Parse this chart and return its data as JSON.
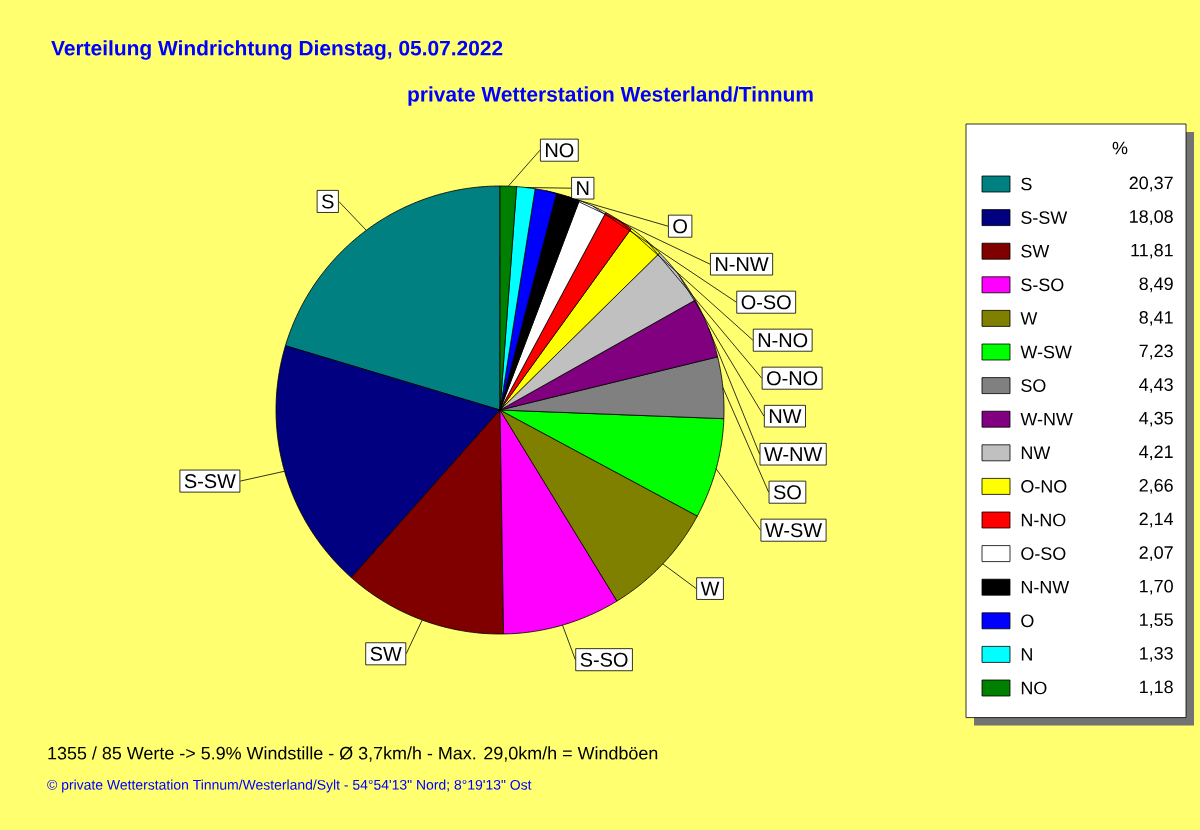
{
  "chart_data": {
    "type": "pie",
    "title": "Verteilung Windrichtung   Dienstag, 05.07.2022",
    "subtitle": "private Wetterstation Westerland/Tinnum",
    "legend_title": "%",
    "categories": [
      "S",
      "S-SW",
      "SW",
      "S-SO",
      "W",
      "W-SW",
      "SO",
      "W-NW",
      "NW",
      "O-NO",
      "N-NO",
      "O-SO",
      "N-NW",
      "O",
      "N",
      "NO"
    ],
    "values": [
      20.37,
      18.08,
      11.81,
      8.49,
      8.41,
      7.23,
      4.43,
      4.35,
      4.21,
      2.66,
      2.14,
      2.07,
      1.7,
      1.55,
      1.33,
      1.18
    ],
    "value_labels": [
      "20,37",
      "18,08",
      "11,81",
      "8,49",
      "8,41",
      "7,23",
      "4,43",
      "4,35",
      "4,21",
      "2,66",
      "2,14",
      "2,07",
      "1,70",
      "1,55",
      "1,33",
      "1,18"
    ],
    "colors": [
      "#008080",
      "#000080",
      "#800000",
      "#ff00ff",
      "#808000",
      "#00ff00",
      "#808080",
      "#800080",
      "#c0c0c0",
      "#ffff00",
      "#ff0000",
      "#ffffff",
      "#000000",
      "#0000ff",
      "#00ffff",
      "#008000"
    ],
    "legend": "right",
    "annotations": [
      "1355 / 85 Werte  -> 5.9% Windstille   -   Ø 3,7km/h  -  Max. 29,0km/h = Windböen",
      "© private Wetterstation Tinnum/Westerland/Sylt  -  54°54'13\" Nord; 8°19'13\" Ost"
    ]
  }
}
